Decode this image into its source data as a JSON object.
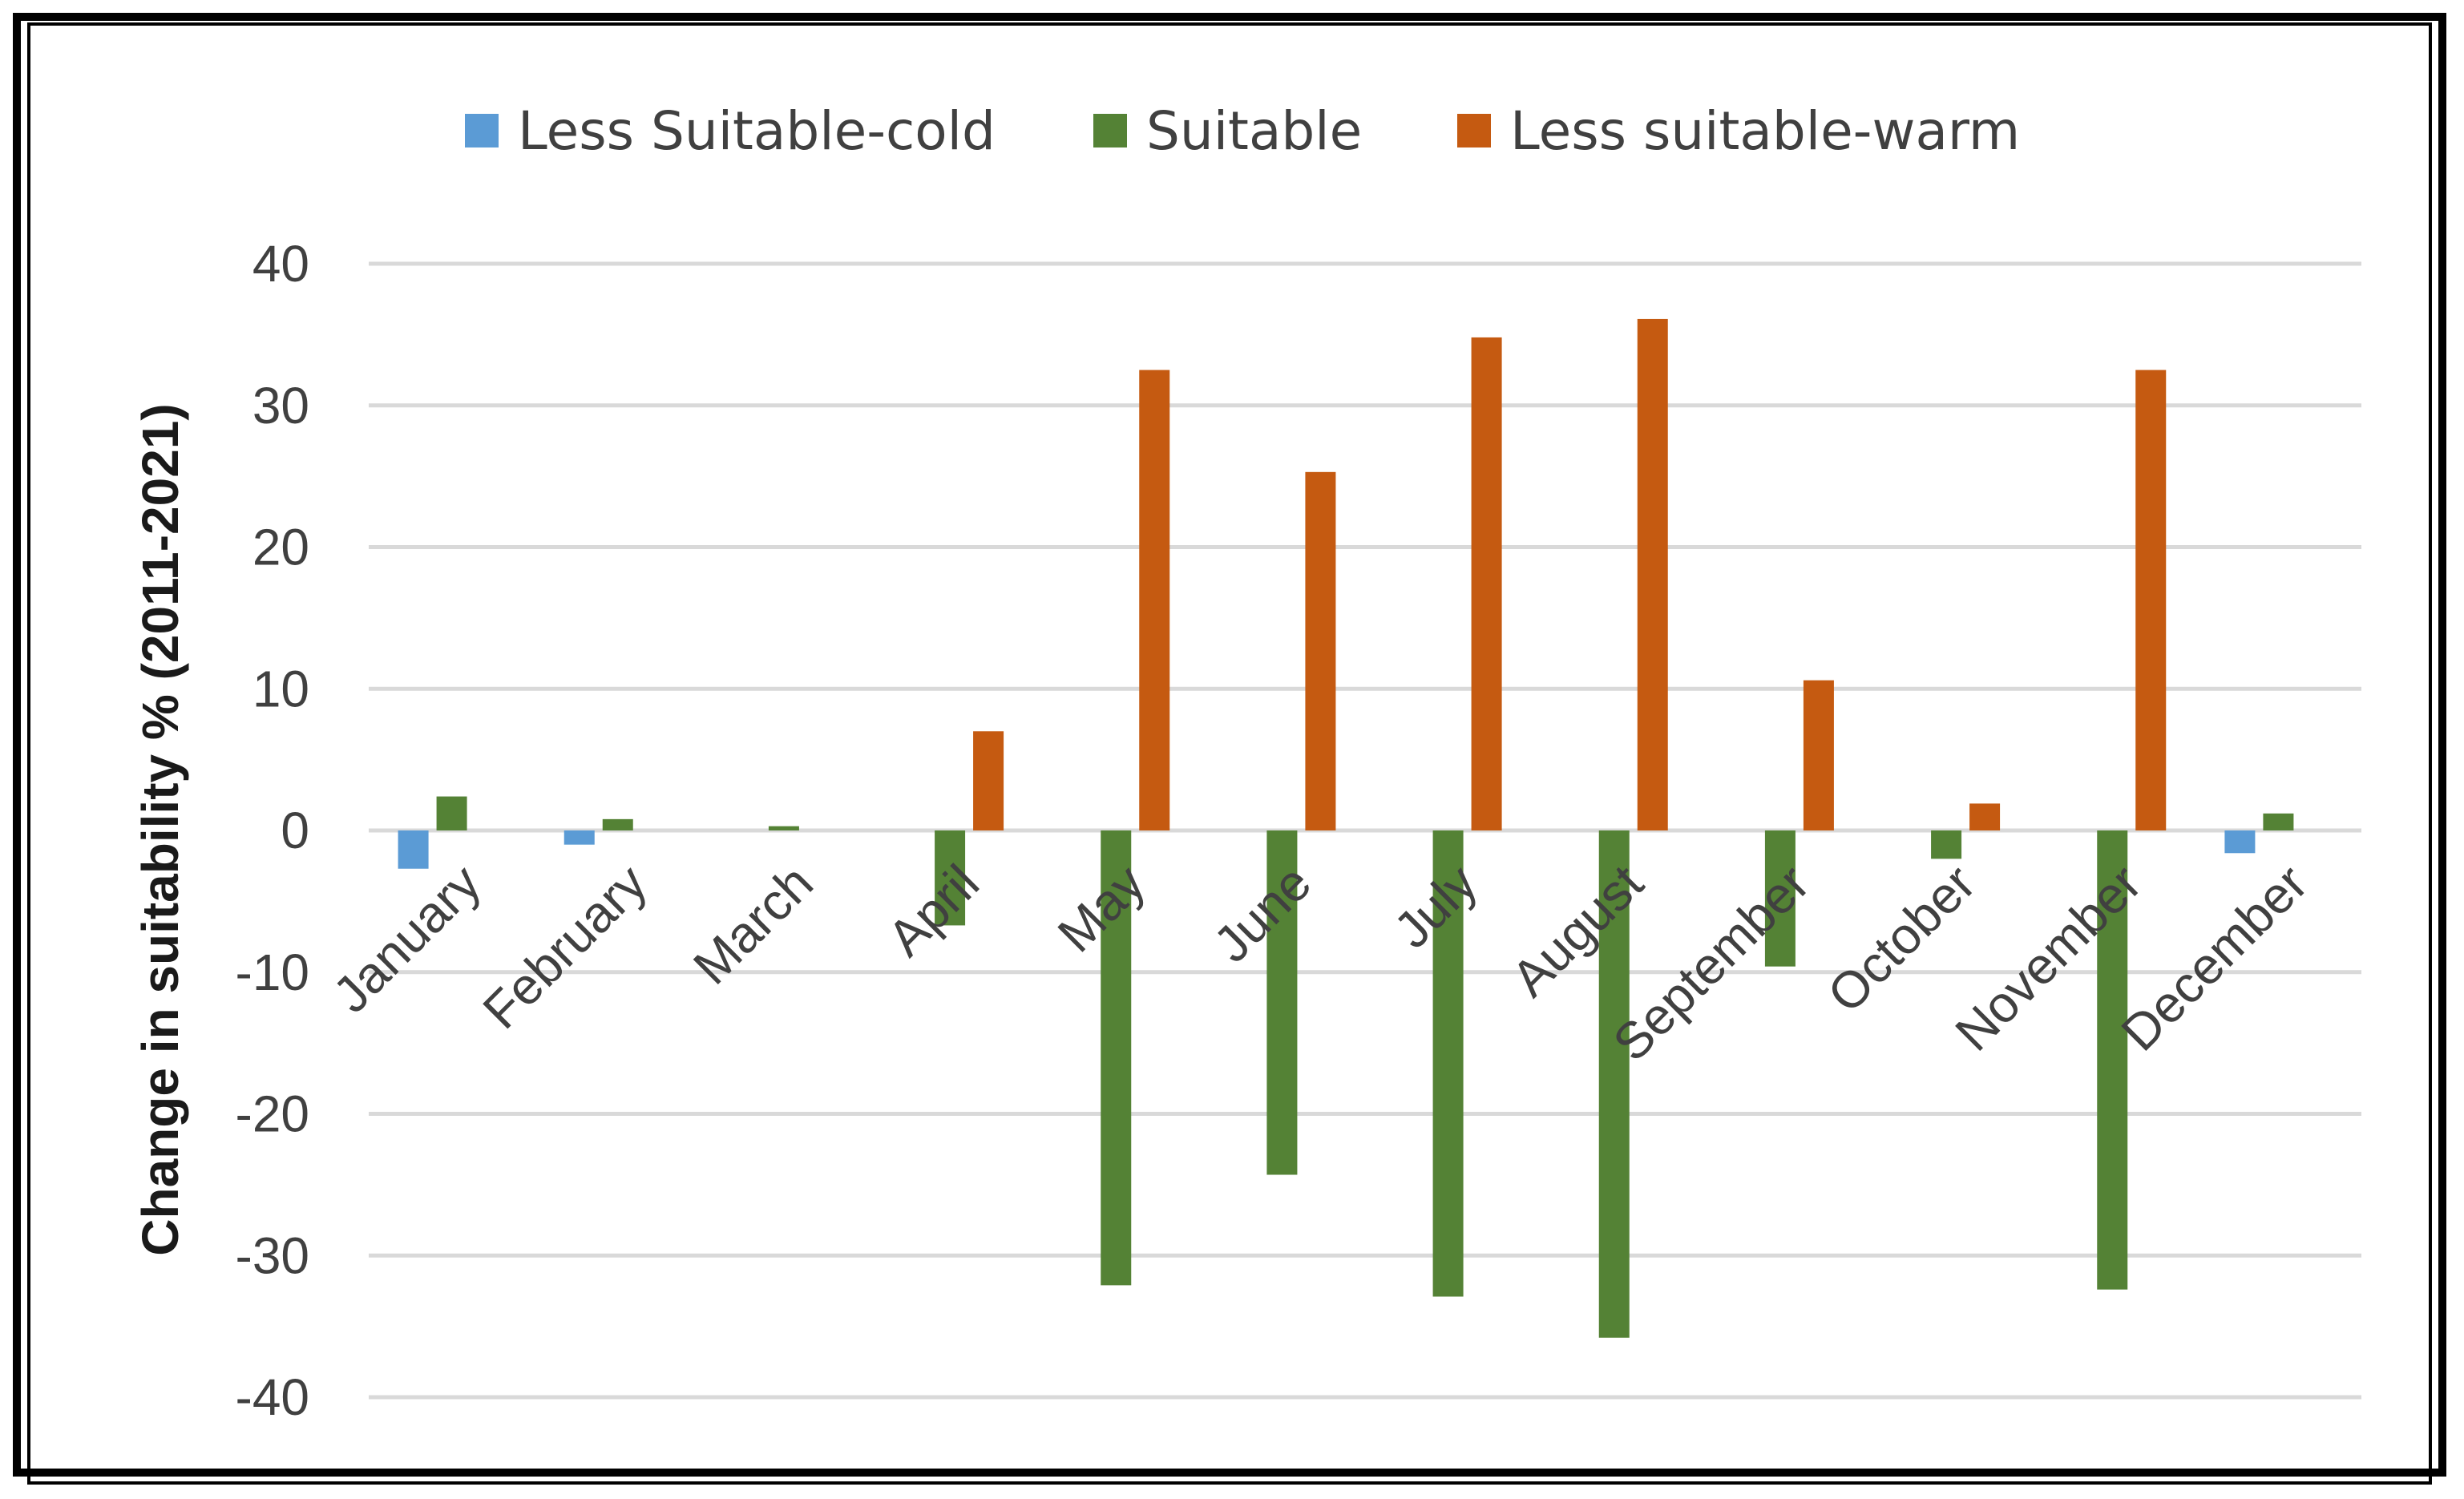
{
  "chart_data": {
    "type": "bar",
    "title": "",
    "xlabel": "",
    "ylabel": "Change in suitability  % (2011-2021)",
    "ylim": [
      -40,
      40
    ],
    "yticks": [
      40,
      30,
      20,
      10,
      0,
      -10,
      -20,
      -30,
      -40
    ],
    "grid": true,
    "legend_position": "top",
    "categories": [
      "January",
      "February",
      "March",
      "April",
      "May",
      "June",
      "July",
      "August",
      "September",
      "October",
      "November",
      "December"
    ],
    "series": [
      {
        "name": "Less Suitable-cold",
        "color": "#5b9bd5",
        "values": [
          -2.7,
          -1.0,
          0,
          0,
          0,
          0,
          0,
          0,
          0,
          0,
          0,
          -1.6
        ]
      },
      {
        "name": "Suitable",
        "color": "#548235",
        "values": [
          2.4,
          0.8,
          0.3,
          -6.7,
          -32.1,
          -24.3,
          -32.9,
          -35.8,
          -9.6,
          -2.0,
          -32.4,
          1.2
        ]
      },
      {
        "name": "Less suitable-warm",
        "color": "#c55a11",
        "values": [
          0,
          0,
          0,
          7.0,
          32.5,
          25.3,
          34.8,
          36.1,
          10.6,
          1.9,
          32.5,
          0
        ]
      }
    ]
  }
}
